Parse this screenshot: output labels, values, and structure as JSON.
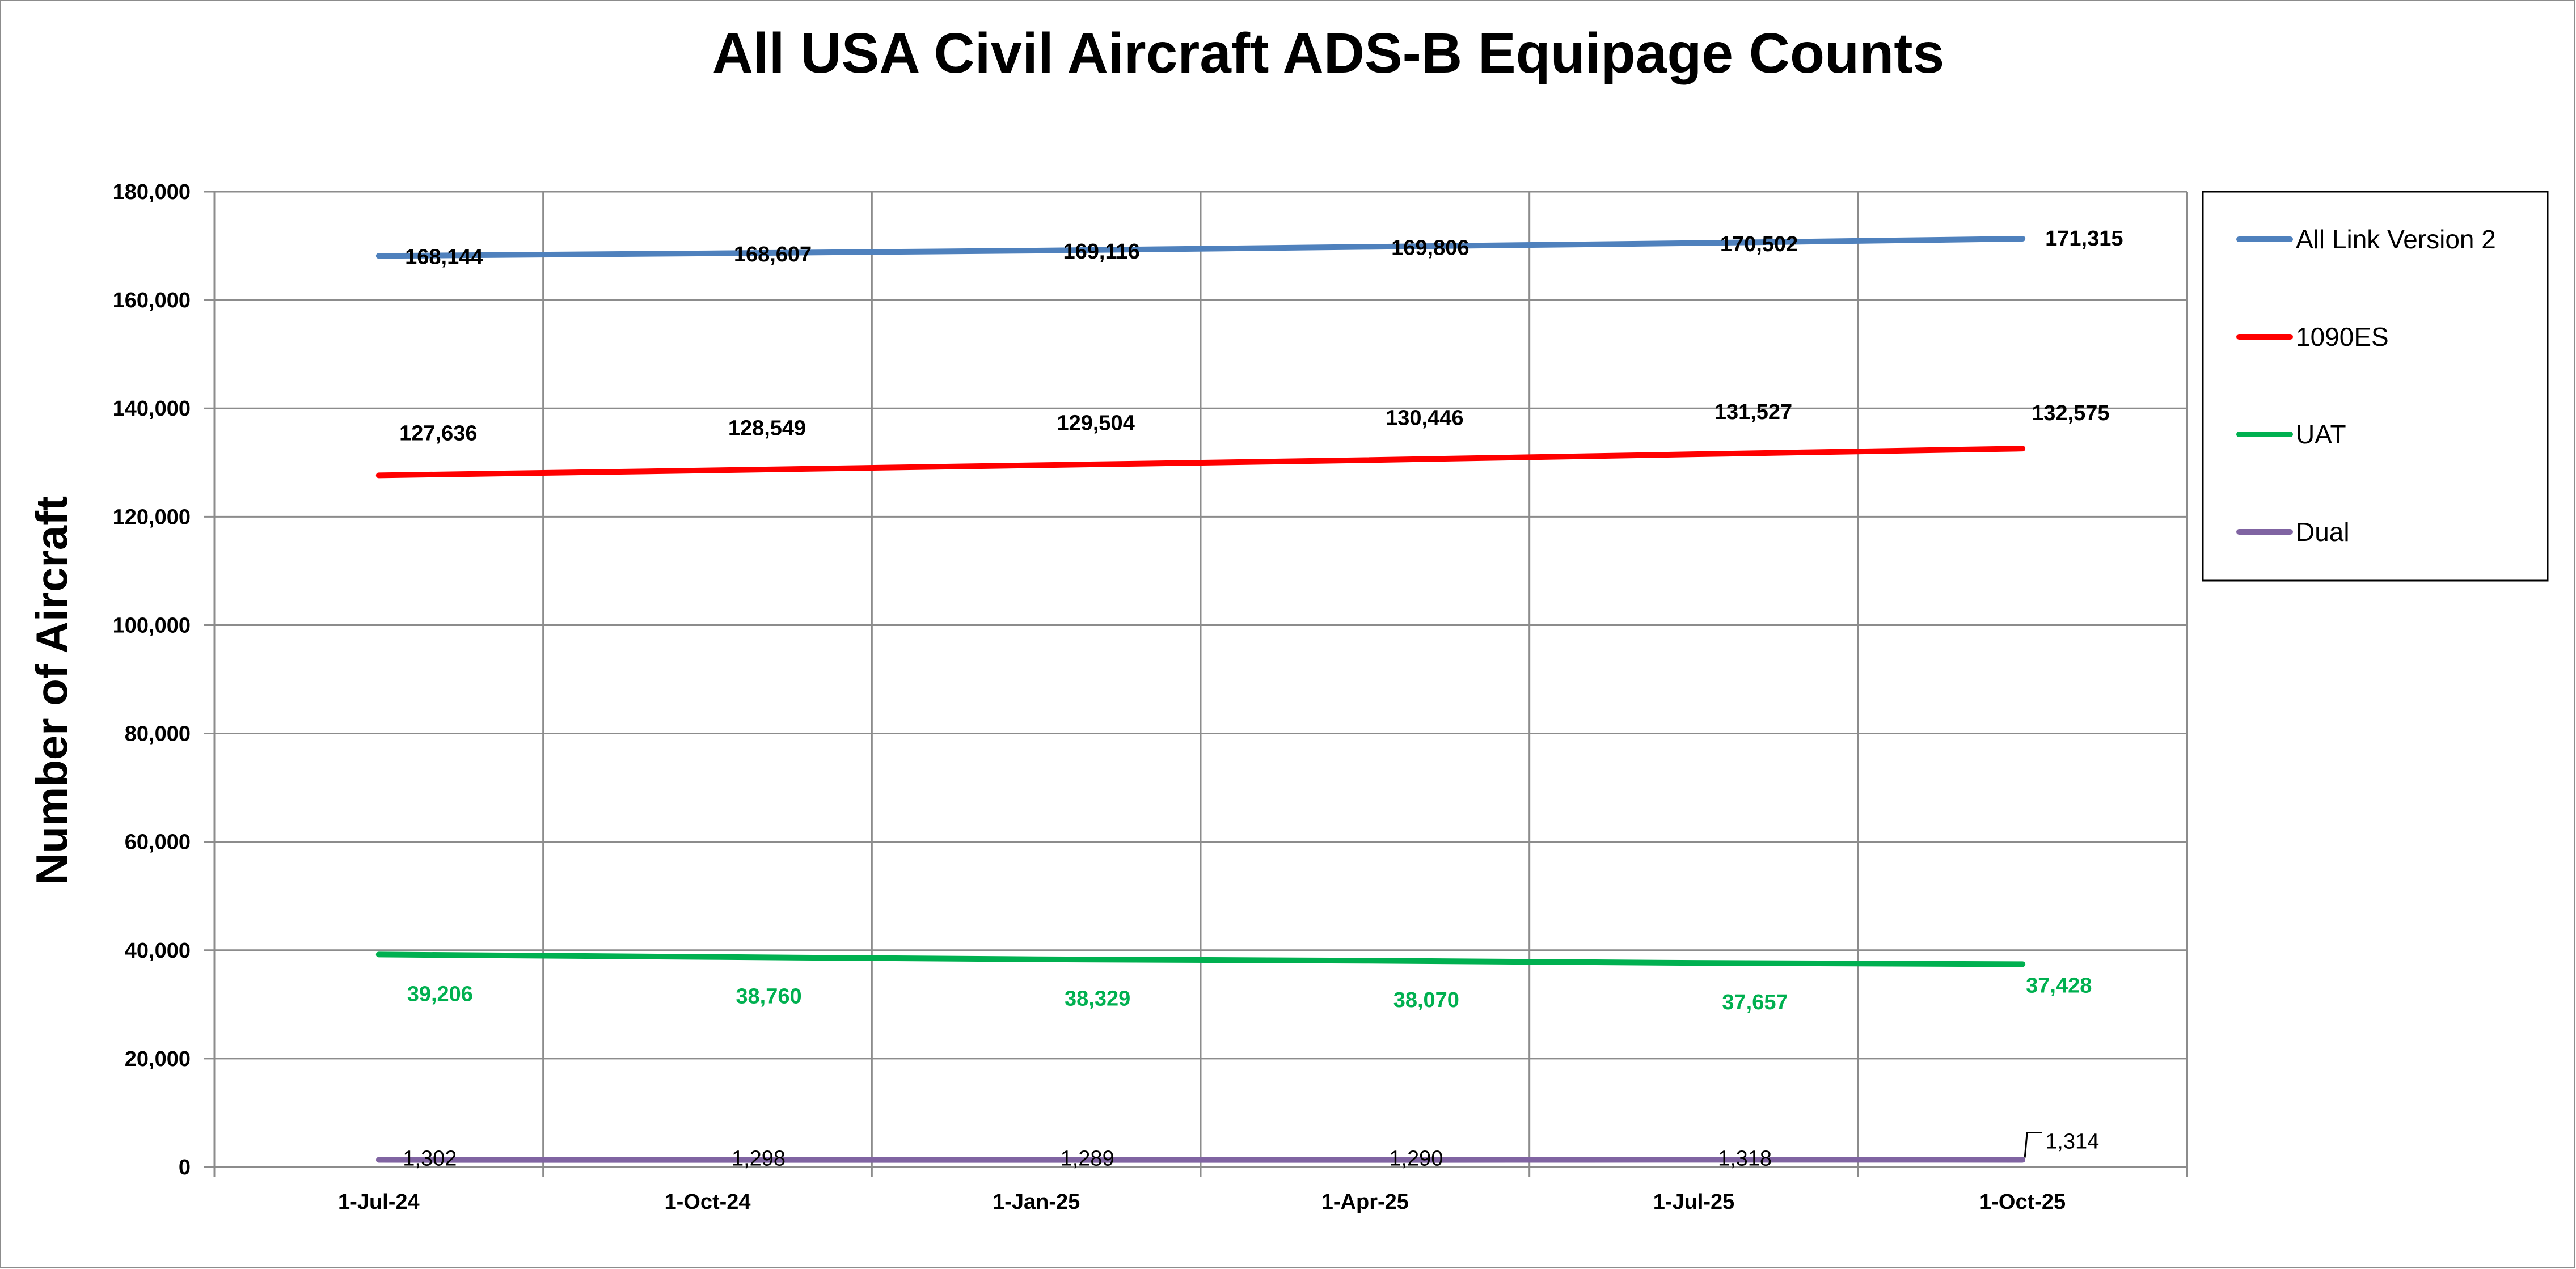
{
  "chart_data": {
    "type": "line",
    "title": "All USA Civil Aircraft ADS-B Equipage Counts",
    "ylabel": "Number of Aircraft",
    "xlabel": "",
    "categories": [
      "1-Jul-24",
      "1-Oct-24",
      "1-Jan-25",
      "1-Apr-25",
      "1-Jul-25",
      "1-Oct-25"
    ],
    "ylim": [
      0,
      180000
    ],
    "yticks": [
      0,
      20000,
      40000,
      60000,
      80000,
      100000,
      120000,
      140000,
      160000,
      180000
    ],
    "ytick_labels": [
      "0",
      "20,000",
      "40,000",
      "60,000",
      "80,000",
      "100,000",
      "120,000",
      "140,000",
      "160,000",
      "180,000"
    ],
    "grid": true,
    "legend_position": "right",
    "series": [
      {
        "name": "All Link Version 2",
        "color": "#4F81BD",
        "label_color": "#000000",
        "values": [
          168144,
          168607,
          169116,
          169806,
          170502,
          171315
        ],
        "labels": [
          "168,144",
          "168,607",
          "169,116",
          "169,806",
          "170,502",
          "171,315"
        ]
      },
      {
        "name": "1090ES",
        "color": "#FF0000",
        "label_color": "#000000",
        "values": [
          127636,
          128549,
          129504,
          130446,
          131527,
          132575
        ],
        "labels": [
          "127,636",
          "128,549",
          "129,504",
          "130,446",
          "131,527",
          "132,575"
        ]
      },
      {
        "name": "UAT",
        "color": "#00B050",
        "label_color": "#00B050",
        "values": [
          39206,
          38760,
          38329,
          38070,
          37657,
          37428
        ],
        "labels": [
          "39,206",
          "38,760",
          "38,329",
          "38,070",
          "37,657",
          "37,428"
        ]
      },
      {
        "name": "Dual",
        "color": "#8064A2",
        "label_color": "#000000",
        "values": [
          1302,
          1298,
          1289,
          1290,
          1318,
          1314
        ],
        "labels": [
          "1,302",
          "1,298",
          "1,289",
          "1,290",
          "1,318",
          "1,314"
        ]
      }
    ]
  }
}
